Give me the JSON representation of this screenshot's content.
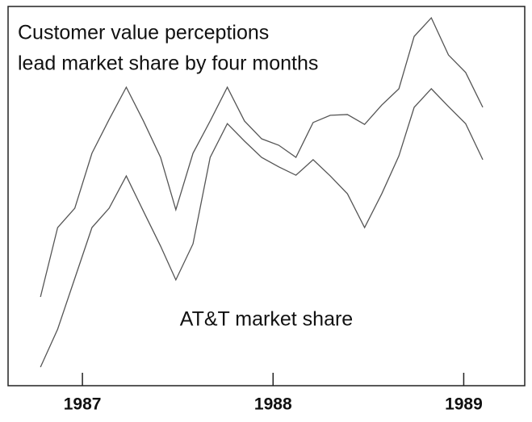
{
  "chart_data": {
    "type": "line",
    "title": [
      "Customer value perceptions",
      "lead market share by four months"
    ],
    "annotation": "AT&T market share",
    "x": [
      1986.78,
      1986.87,
      1986.96,
      1987.05,
      1987.14,
      1987.23,
      1987.32,
      1987.41,
      1987.49,
      1987.58,
      1987.67,
      1987.76,
      1987.85,
      1987.94,
      1988.03,
      1988.12,
      1988.21,
      1988.3,
      1988.39,
      1988.48,
      1988.57,
      1988.66,
      1988.74,
      1988.83,
      1988.92,
      1989.01,
      1989.1
    ],
    "series": [
      {
        "color": "#555555",
        "values": [
          23.4,
          41.7,
          46.8,
          61.3,
          70.2,
          78.7,
          69.8,
          60.2,
          46.4,
          61.3,
          69.8,
          78.7,
          69.8,
          65.1,
          63.4,
          60.2,
          69.4,
          71.3,
          71.5,
          68.9,
          74.0,
          78.3,
          92.1,
          97.0,
          87.2,
          82.6,
          73.4
        ]
      },
      {
        "color": "#555555",
        "values": [
          4.9,
          14.9,
          28.3,
          41.7,
          46.8,
          55.3,
          46.0,
          36.8,
          27.9,
          37.4,
          60.2,
          69.1,
          64.5,
          60.2,
          57.7,
          55.5,
          59.6,
          55.3,
          50.6,
          41.7,
          50.6,
          60.6,
          73.4,
          78.3,
          73.6,
          69.1,
          59.6
        ]
      }
    ],
    "xlim": [
      1986.61,
      1989.32
    ],
    "xticks": [
      1987,
      1988,
      1989
    ],
    "ylim": [
      0,
      100
    ]
  }
}
